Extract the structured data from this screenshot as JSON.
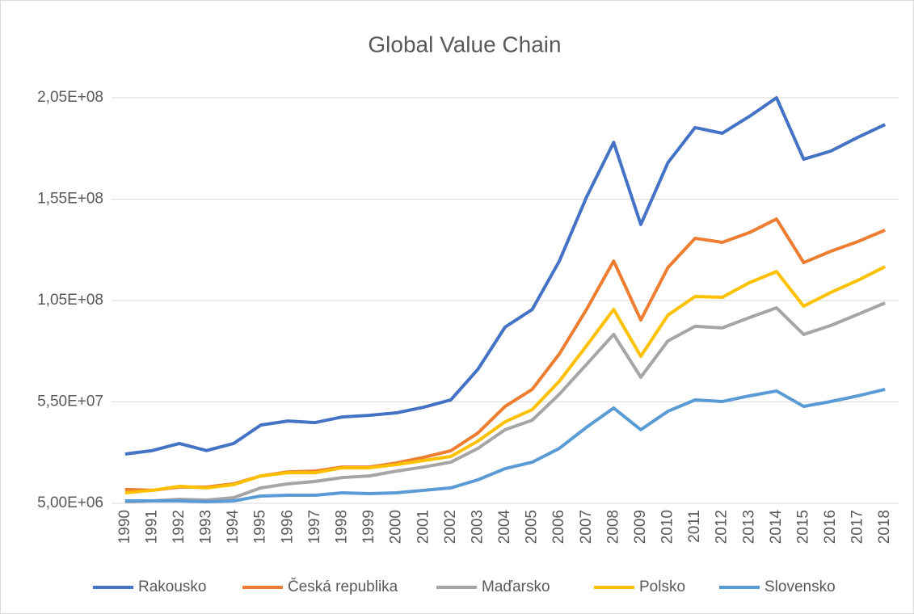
{
  "chart_data": {
    "type": "line",
    "title": "Global Value Chain",
    "categories": [
      "1990",
      "1991",
      "1992",
      "1993",
      "1994",
      "1995",
      "1996",
      "1997",
      "1998",
      "1999",
      "2000",
      "2001",
      "2002",
      "2003",
      "2004",
      "2005",
      "2006",
      "2007",
      "2008",
      "2009",
      "2010",
      "2011",
      "2012",
      "2013",
      "2014",
      "2015",
      "2016",
      "2017",
      "2018"
    ],
    "series": [
      {
        "name": "Rakousko",
        "color": "#4472c4",
        "values": [
          29300000,
          31000000,
          34500000,
          31000000,
          34500000,
          43600000,
          45600000,
          44800000,
          47600000,
          48400000,
          49600000,
          52400000,
          56000000,
          71100000,
          91900000,
          100600000,
          124500000,
          156000000,
          183000000,
          142500000,
          173000000,
          190300000,
          187500000,
          195800000,
          205000000,
          174700000,
          178700000,
          185500000,
          191800000
        ]
      },
      {
        "name": "Česká republika",
        "color": "#ed7d31",
        "values": [
          11800000,
          11400000,
          13000000,
          13000000,
          14600000,
          18500000,
          20500000,
          20900000,
          22900000,
          22900000,
          24900000,
          27700000,
          30900000,
          39700000,
          52800000,
          61200000,
          78700000,
          100600000,
          124500000,
          95400000,
          121300000,
          135700000,
          133700000,
          138500000,
          145200000,
          123700000,
          129300000,
          134100000,
          139700000
        ]
      },
      {
        "name": "Maďarsko",
        "color": "#a5a5a5",
        "values": [
          5800000,
          6200000,
          7000000,
          6600000,
          7800000,
          12600000,
          14600000,
          15800000,
          17700000,
          18500000,
          20900000,
          22900000,
          25300000,
          32100000,
          41300000,
          46000000,
          58800000,
          73500000,
          88300000,
          67200000,
          85100000,
          92300000,
          91500000,
          96600000,
          101400000,
          88300000,
          92700000,
          98200000,
          103800000
        ]
      },
      {
        "name": "Polsko",
        "color": "#ffc000",
        "values": [
          10200000,
          11400000,
          13400000,
          12600000,
          14200000,
          18500000,
          20100000,
          20100000,
          22500000,
          22500000,
          24100000,
          26100000,
          28100000,
          35700000,
          45200000,
          51200000,
          65200000,
          82700000,
          100600000,
          77500000,
          97800000,
          107000000,
          106600000,
          113800000,
          119300000,
          102200000,
          109000000,
          115000000,
          121700000
        ]
      },
      {
        "name": "Slovensko",
        "color": "#5b9bd5",
        "values": [
          6200000,
          6200000,
          6200000,
          5800000,
          6200000,
          8600000,
          9000000,
          9000000,
          10200000,
          9800000,
          10200000,
          11400000,
          12600000,
          16600000,
          22100000,
          25300000,
          32100000,
          42500000,
          52000000,
          41300000,
          50400000,
          56000000,
          55200000,
          58000000,
          60400000,
          52800000,
          55200000,
          58000000,
          61200000
        ]
      }
    ],
    "ylim": [
      5000000,
      205000000
    ],
    "yticks": [
      {
        "value": 5000000,
        "label": "5,00E+06"
      },
      {
        "value": 55000000,
        "label": "5,50E+07"
      },
      {
        "value": 105000000,
        "label": "1,05E+08"
      },
      {
        "value": 155000000,
        "label": "1,55E+08"
      },
      {
        "value": 205000000,
        "label": "2,05E+08"
      }
    ],
    "grid": true,
    "legend": "bottom"
  }
}
